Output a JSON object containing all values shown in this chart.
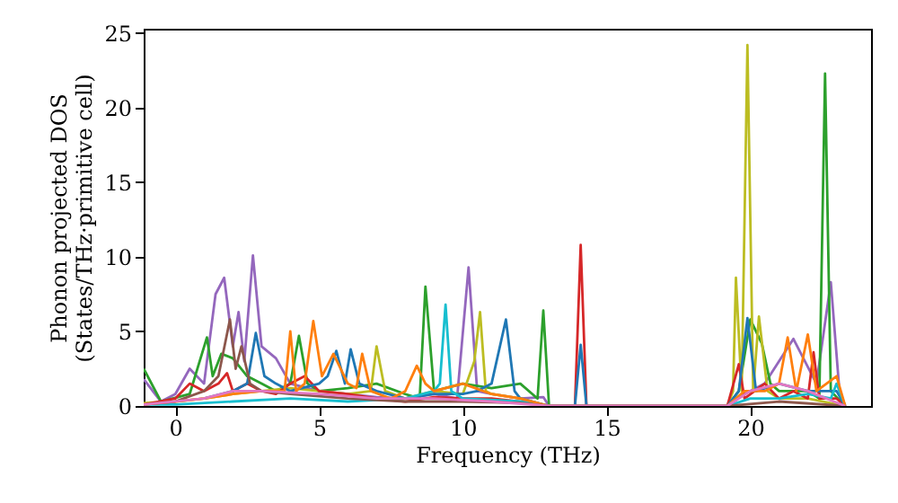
{
  "chart_data": {
    "type": "line",
    "xlabel": "Frequency (THz)",
    "ylabel": "Phonon projected DOS\n(States/THz·primitive cell)",
    "xlim": [
      -1.1,
      24.2
    ],
    "ylim": [
      0,
      25.3
    ],
    "xticks": [
      0,
      5,
      10,
      15,
      20
    ],
    "yticks": [
      0,
      5,
      10,
      15,
      20,
      25
    ],
    "grid": false,
    "line_style": "solid",
    "series": [
      {
        "color": "#9467bd",
        "x": [
          -1.1,
          -0.5,
          0,
          0.5,
          1,
          1.4,
          1.7,
          2,
          2.2,
          2.4,
          2.7,
          3,
          3.5,
          4,
          5,
          6,
          7,
          8,
          9,
          9.8,
          10.2,
          10.5,
          11,
          12,
          12.8,
          13,
          19.2,
          19.8,
          20.5,
          21.5,
          22.3,
          22.8,
          23.1,
          23.3
        ],
        "values": [
          1.8,
          0.3,
          0.8,
          2.5,
          1.5,
          7.5,
          8.6,
          4,
          6.3,
          3,
          10.1,
          4,
          3.2,
          1.5,
          1,
          0.8,
          0.6,
          0.5,
          0.8,
          0.5,
          9.3,
          1,
          0.8,
          0.5,
          0.6,
          0,
          0,
          0.8,
          1.5,
          4.5,
          1.5,
          8.3,
          1,
          0
        ]
      },
      {
        "color": "#2ca02c",
        "x": [
          -1.1,
          -0.5,
          0.5,
          1.1,
          1.3,
          1.6,
          2,
          2.5,
          3,
          3.5,
          4,
          4.3,
          4.6,
          5,
          6,
          7,
          8,
          8.5,
          8.7,
          9,
          10,
          11,
          12,
          12.6,
          12.8,
          13,
          19.2,
          19.6,
          20.0,
          20.4,
          20.7,
          21,
          22,
          22.4,
          22.6,
          22.8,
          23.3
        ],
        "values": [
          2.5,
          0.3,
          0.8,
          4.6,
          2,
          3.5,
          3.2,
          2,
          1.5,
          1,
          1.5,
          4.7,
          1.5,
          1,
          1.2,
          1.5,
          0.8,
          0.5,
          8.0,
          1,
          1.5,
          1.2,
          1.5,
          0.5,
          6.4,
          0,
          0,
          1,
          5.8,
          4.2,
          1.5,
          1,
          1,
          0.5,
          22.3,
          1,
          0
        ]
      },
      {
        "color": "#bcbd22",
        "x": [
          -1.1,
          0,
          1,
          2,
          3,
          4,
          5,
          6,
          6.8,
          7,
          7.3,
          8,
          9,
          10,
          10.4,
          10.6,
          10.8,
          11,
          12,
          13,
          19.2,
          19.4,
          19.5,
          19.7,
          19.9,
          20.1,
          20.3,
          20.6,
          21,
          22,
          23.3
        ],
        "values": [
          0.2,
          0.3,
          0.5,
          0.8,
          1,
          1.2,
          1,
          0.8,
          1,
          4.0,
          1,
          0.5,
          1,
          0.8,
          3,
          6.3,
          1,
          0.8,
          0.5,
          0,
          0,
          1,
          8.6,
          1,
          24.2,
          1,
          6.0,
          1,
          0.5,
          0.5,
          0
        ]
      },
      {
        "color": "#d62728",
        "x": [
          -1.1,
          0,
          0.5,
          1,
          1.5,
          1.8,
          2,
          2.5,
          3,
          3.5,
          4,
          4.5,
          5,
          6,
          7,
          8,
          9,
          10,
          11,
          12,
          13,
          13.9,
          14.1,
          14.3,
          19.2,
          19.6,
          19.8,
          20.5,
          21,
          21.5,
          22,
          22.2,
          22.4,
          23,
          23.3
        ],
        "values": [
          0.1,
          0.5,
          1.5,
          1,
          1.5,
          2.2,
          1,
          1.5,
          1,
          0.8,
          1.5,
          2,
          1,
          0.8,
          0.5,
          0.3,
          0.6,
          0.5,
          0.5,
          0.3,
          0,
          0,
          10.8,
          0,
          0,
          2.8,
          0.5,
          1.5,
          0.5,
          1,
          0.5,
          3.6,
          0.5,
          0.5,
          0
        ]
      },
      {
        "color": "#1f77b4",
        "x": [
          1,
          2,
          2.5,
          2.8,
          3.1,
          3.5,
          4,
          5,
          5.3,
          5.6,
          5.9,
          6.1,
          6.4,
          7,
          8,
          9,
          10,
          10.5,
          11,
          11.5,
          11.8,
          12,
          13,
          13.9,
          14.1,
          14.3,
          19.2,
          19.6,
          19.9,
          20.2,
          21,
          22,
          23,
          23.3
        ],
        "values": [
          0.5,
          1,
          1.5,
          4.9,
          2,
          1.5,
          1,
          1.5,
          2,
          3.7,
          1.5,
          3.8,
          1.5,
          1,
          0.5,
          0.8,
          0.8,
          1,
          1.5,
          5.8,
          1,
          0.5,
          0,
          0,
          4.1,
          0,
          0,
          1,
          5.9,
          1,
          1.5,
          1,
          1,
          0
        ]
      },
      {
        "color": "#17becf",
        "x": [
          -1.1,
          0,
          2,
          4,
          6,
          8,
          9,
          9.2,
          9.4,
          9.6,
          10,
          12,
          13,
          19.2,
          20,
          21,
          22,
          22.8,
          23,
          23.3
        ],
        "values": [
          0.1,
          0.1,
          0.3,
          0.5,
          0.3,
          0.5,
          1,
          1.5,
          6.8,
          1,
          0.5,
          0.3,
          0,
          0,
          0.5,
          0.5,
          0.8,
          0.5,
          1.5,
          0
        ]
      },
      {
        "color": "#ff7f0e",
        "x": [
          -1.1,
          0,
          1,
          2,
          3,
          3.8,
          4,
          4.2,
          4.5,
          4.8,
          5.1,
          5.5,
          6,
          6.3,
          6.5,
          6.8,
          7.5,
          8,
          8.4,
          8.7,
          9,
          10,
          11,
          12,
          13,
          19.2,
          19.8,
          20.5,
          21,
          21.3,
          21.6,
          22,
          22.3,
          23,
          23.3
        ],
        "values": [
          0.1,
          0.3,
          0.5,
          0.8,
          1,
          1,
          5.0,
          1,
          1.5,
          5.7,
          2,
          3.5,
          1.5,
          1.2,
          3.5,
          1,
          0.5,
          1,
          2.7,
          1.5,
          1,
          1.5,
          0.8,
          0.5,
          0,
          0,
          1,
          1,
          1.5,
          4.6,
          1,
          4.8,
          1,
          2,
          0
        ]
      },
      {
        "color": "#8c564b",
        "x": [
          -1.1,
          0,
          1,
          1.5,
          1.9,
          2.1,
          2.3,
          2.6,
          3,
          4,
          6,
          8,
          10,
          12,
          13,
          19.2,
          21,
          23.3
        ],
        "values": [
          0.1,
          0.3,
          1,
          2,
          5.8,
          2.5,
          4,
          1.5,
          1,
          0.8,
          0.5,
          0.3,
          0.3,
          0.2,
          0,
          0,
          0.3,
          0
        ]
      },
      {
        "color": "#e377c2",
        "x": [
          -1.1,
          1,
          2,
          3,
          5,
          7,
          9,
          11,
          13,
          19.2,
          20,
          21,
          22,
          23.3
        ],
        "values": [
          0.1,
          0.5,
          1,
          1,
          0.8,
          0.5,
          0.5,
          0.3,
          0,
          0,
          1,
          1.5,
          1,
          0
        ]
      }
    ]
  }
}
